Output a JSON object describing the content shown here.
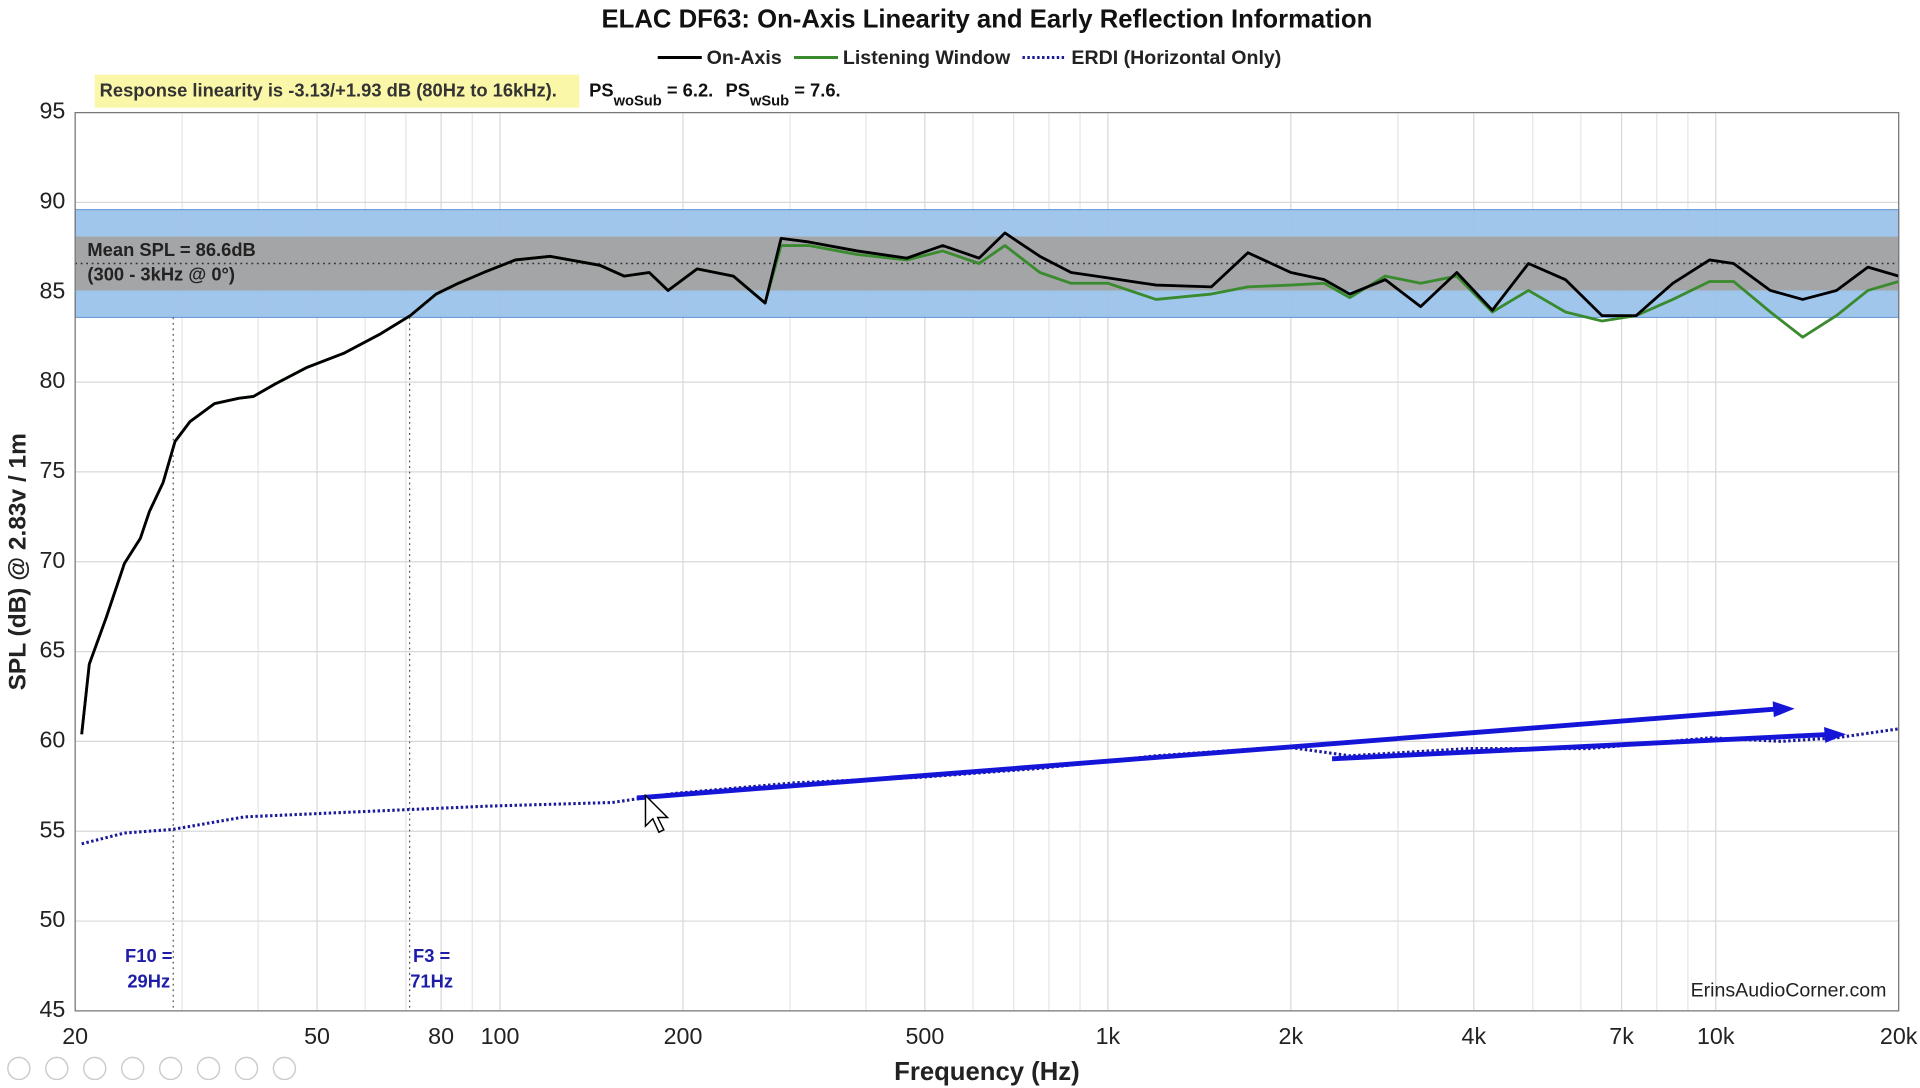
{
  "chart_data": {
    "type": "line",
    "title": "ELAC DF63: On-Axis Linearity and Early Reflection Information",
    "xlabel": "Frequency (Hz)",
    "ylabel": "SPL (dB) @ 2.83v / 1m",
    "xscale": "log",
    "xlim": [
      20,
      20000
    ],
    "ylim": [
      45,
      95
    ],
    "xticks": [
      20,
      50,
      80,
      100,
      200,
      500,
      {
        "value": 1000,
        "label": "1k"
      },
      {
        "value": 2000,
        "label": "2k"
      },
      {
        "value": 4000,
        "label": "4k"
      },
      {
        "value": 7000,
        "label": "7k"
      },
      {
        "value": 10000,
        "label": "10k"
      },
      {
        "value": 20000,
        "label": "20k"
      }
    ],
    "xgrid_minor": [
      30,
      40,
      60,
      70,
      90,
      300,
      400,
      600,
      700,
      800,
      900,
      3000,
      5000,
      6000,
      8000,
      9000
    ],
    "yticks": [
      45,
      50,
      55,
      60,
      65,
      70,
      75,
      80,
      85,
      90,
      95
    ],
    "grid": true,
    "legend": "top",
    "annotation": "Response linearity is -3.13/+1.93 dB (80Hz to 16kHz).",
    "ps_labels": [
      {
        "main": "PS",
        "sub": "woSub",
        "rest": " = 6.2."
      },
      {
        "main": "PS",
        "sub": "wSub",
        "rest": " = 7.6."
      }
    ],
    "mean_spl": 86.6,
    "mean_label": [
      "Mean SPL = 86.6dB",
      "(300 - 3kHz @ 0°)"
    ],
    "bands": [
      {
        "low": 83.6,
        "high": 89.6,
        "color": "#9cc3ea"
      },
      {
        "low": 85.1,
        "high": 88.1,
        "color": "#a3a3a3"
      }
    ],
    "freq_markers": [
      {
        "value": 29,
        "label": [
          "F10 =",
          "29Hz"
        ]
      },
      {
        "value": 71,
        "label": [
          "F3 =",
          "71Hz"
        ]
      }
    ],
    "watermark": "ErinsAudioCorner.com",
    "series": [
      {
        "name": "On-Axis",
        "color": "#000000",
        "dash": "solid",
        "x": [
          20.5,
          21.1,
          22.5,
          24.1,
          25.6,
          26.5,
          27.9,
          29.2,
          30.9,
          33.9,
          37.2,
          39.3,
          42.7,
          48,
          55.3,
          63.7,
          71.2,
          78.5,
          85.4,
          94,
          106,
          121,
          146,
          160,
          176,
          189,
          211,
          242,
          273,
          290,
          322,
          387,
          467,
          535,
          614,
          677,
          773,
          870,
          1000,
          1200,
          1480,
          1700,
          2000,
          2270,
          2500,
          2860,
          3270,
          3750,
          4290,
          4920,
          5660,
          6500,
          7400,
          8500,
          9770,
          10700,
          12300,
          13900,
          15800,
          17800,
          20000
        ],
        "values": [
          60.4,
          64.3,
          66.9,
          69.9,
          71.3,
          72.8,
          74.4,
          76.7,
          77.8,
          78.8,
          79.1,
          79.2,
          79.9,
          80.8,
          81.6,
          82.7,
          83.7,
          84.9,
          85.5,
          86.1,
          86.8,
          87.0,
          86.5,
          85.9,
          86.1,
          85.1,
          86.3,
          85.9,
          84.4,
          88.0,
          87.8,
          87.3,
          86.9,
          87.6,
          86.9,
          88.3,
          87.0,
          86.1,
          85.8,
          85.4,
          85.3,
          87.2,
          86.1,
          85.7,
          84.9,
          85.7,
          84.2,
          86.1,
          84.0,
          86.6,
          85.7,
          83.7,
          83.7,
          85.5,
          86.8,
          86.6,
          85.1,
          84.6,
          85.1,
          86.4,
          85.9
        ]
      },
      {
        "name": "Listening Window",
        "color": "#3a8a2e",
        "dash": "solid",
        "x": [
          20.5,
          21.1,
          22.5,
          24.1,
          25.6,
          26.5,
          27.9,
          29.2,
          30.9,
          33.9,
          37.2,
          39.3,
          42.7,
          48,
          55.3,
          63.7,
          71.2,
          78.5,
          85.4,
          94,
          106,
          121,
          146,
          160,
          176,
          189,
          211,
          242,
          273,
          290,
          322,
          387,
          467,
          535,
          614,
          677,
          773,
          870,
          1000,
          1200,
          1480,
          1700,
          2000,
          2270,
          2500,
          2860,
          3270,
          3750,
          4290,
          4920,
          5660,
          6500,
          7400,
          8500,
          9770,
          10700,
          12300,
          13900,
          15800,
          17800,
          20000
        ],
        "values": [
          60.4,
          64.3,
          66.9,
          69.9,
          71.3,
          72.8,
          74.4,
          76.7,
          77.8,
          78.8,
          79.1,
          79.2,
          79.9,
          80.8,
          81.6,
          82.7,
          83.7,
          84.9,
          85.5,
          86.1,
          86.8,
          87.0,
          86.5,
          85.9,
          86.1,
          85.1,
          86.3,
          85.9,
          84.4,
          87.6,
          87.6,
          87.1,
          86.8,
          87.3,
          86.6,
          87.6,
          86.1,
          85.5,
          85.5,
          84.6,
          84.9,
          85.3,
          85.4,
          85.5,
          84.7,
          85.9,
          85.5,
          85.9,
          83.9,
          85.1,
          83.9,
          83.4,
          83.7,
          84.6,
          85.6,
          85.6,
          83.9,
          82.5,
          83.7,
          85.1,
          85.6
        ]
      },
      {
        "name": "ERDI (Horizontal Only)",
        "color": "#1a1a9a",
        "dash": "dotted",
        "x": [
          20.5,
          24.1,
          28.9,
          38,
          60,
          96,
          153,
          193,
          307,
          490,
          774,
          1200,
          1960,
          2500,
          3900,
          6200,
          9800,
          12800,
          15800,
          20000
        ],
        "values": [
          54.3,
          54.9,
          55.1,
          55.8,
          56.1,
          56.4,
          56.6,
          57.1,
          57.7,
          58.0,
          58.5,
          59.2,
          59.7,
          59.2,
          59.6,
          59.6,
          60.2,
          60.0,
          60.2,
          60.7
        ]
      }
    ]
  }
}
